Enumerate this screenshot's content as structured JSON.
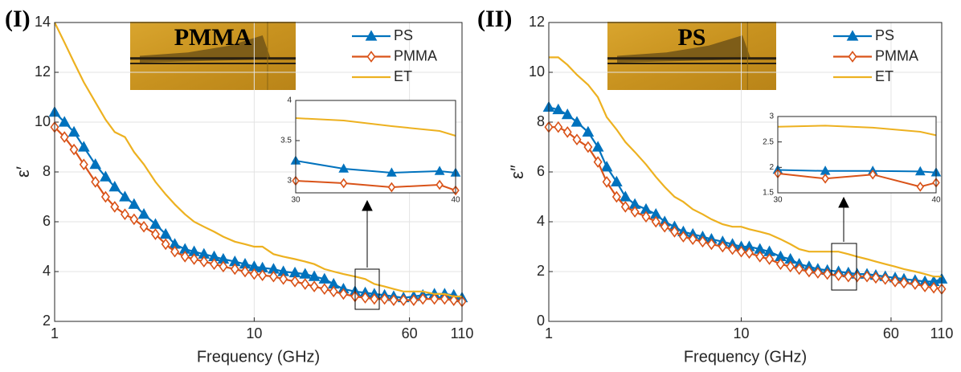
{
  "chart_data": [
    {
      "type": "line",
      "panel_label": "(I)",
      "image_label": "PMMA",
      "xlabel": "Frequency (GHz)",
      "ylabel": "ε′",
      "log_x": true,
      "grid": true,
      "legend": "upper right",
      "xlim": [
        1,
        110
      ],
      "xticks": [
        1,
        10,
        60,
        110
      ],
      "ylim": [
        2,
        14
      ],
      "yticks": [
        2,
        4,
        6,
        8,
        10,
        12,
        14
      ],
      "x": [
        1,
        1.12,
        1.25,
        1.4,
        1.6,
        1.8,
        2,
        2.25,
        2.5,
        2.8,
        3.2,
        3.6,
        4,
        4.5,
        5,
        5.6,
        6.3,
        7,
        8,
        9,
        10,
        11,
        12.5,
        14,
        16,
        18,
        20,
        22.5,
        25,
        28,
        32,
        36,
        40,
        45,
        50,
        56,
        63,
        70,
        80,
        90,
        100,
        110
      ],
      "series": [
        {
          "name": "PS",
          "color": "#0072BD",
          "marker": "triangle",
          "values": [
            10.4,
            10.0,
            9.6,
            9.0,
            8.3,
            7.8,
            7.4,
            7.0,
            6.7,
            6.3,
            5.9,
            5.5,
            5.1,
            4.9,
            4.8,
            4.7,
            4.6,
            4.5,
            4.4,
            4.3,
            4.2,
            4.15,
            4.1,
            4.0,
            3.95,
            3.9,
            3.8,
            3.7,
            3.5,
            3.3,
            3.2,
            3.15,
            3.1,
            3.05,
            3.0,
            2.95,
            3.0,
            3.05,
            3.1,
            3.1,
            3.05,
            2.95
          ]
        },
        {
          "name": "PMMA",
          "color": "#D95319",
          "marker": "diamond",
          "values": [
            9.8,
            9.4,
            8.9,
            8.3,
            7.6,
            7.0,
            6.6,
            6.3,
            6.1,
            5.8,
            5.5,
            5.1,
            4.8,
            4.6,
            4.5,
            4.4,
            4.3,
            4.2,
            4.1,
            4.0,
            3.9,
            3.85,
            3.8,
            3.7,
            3.6,
            3.5,
            3.4,
            3.3,
            3.2,
            3.1,
            3.0,
            2.95,
            2.9,
            2.9,
            2.85,
            2.85,
            2.85,
            2.9,
            2.9,
            2.9,
            2.85,
            2.8
          ]
        },
        {
          "name": "ET",
          "color": "#EDB120",
          "marker": null,
          "values": [
            14.0,
            13.2,
            12.4,
            11.6,
            10.8,
            10.1,
            9.6,
            9.4,
            8.8,
            8.3,
            7.6,
            7.1,
            6.7,
            6.3,
            6.0,
            5.8,
            5.6,
            5.4,
            5.2,
            5.1,
            5.0,
            5.0,
            4.7,
            4.6,
            4.5,
            4.4,
            4.3,
            4.1,
            4.0,
            3.9,
            3.8,
            3.7,
            3.5,
            3.4,
            3.3,
            3.2,
            3.2,
            3.2,
            3.1,
            3.1,
            3.0,
            3.0
          ]
        }
      ]
    },
    {
      "type": "line",
      "grid": false,
      "xlim": [
        30,
        40
      ],
      "xticks": [
        30,
        40
      ],
      "ylim": [
        2.85,
        4
      ],
      "yticks": [
        3,
        3.5,
        4
      ],
      "x": [
        30,
        33,
        36,
        39,
        40
      ],
      "series": [
        {
          "color": "#0072BD",
          "marker": "triangle",
          "values": [
            3.25,
            3.15,
            3.1,
            3.12,
            3.1
          ]
        },
        {
          "color": "#D95319",
          "marker": "diamond",
          "values": [
            3.0,
            2.97,
            2.92,
            2.95,
            2.88
          ]
        },
        {
          "color": "#EDB120",
          "marker": null,
          "values": [
            3.78,
            3.75,
            3.68,
            3.62,
            3.56
          ]
        }
      ]
    },
    {
      "type": "line",
      "panel_label": "(II)",
      "image_label": "PS",
      "xlabel": "Frequency (GHz)",
      "ylabel": "ε″",
      "log_x": true,
      "grid": true,
      "legend": "upper right",
      "xlim": [
        1,
        110
      ],
      "xticks": [
        1,
        10,
        60,
        110
      ],
      "ylim": [
        0,
        12
      ],
      "yticks": [
        0,
        2,
        4,
        6,
        8,
        10,
        12
      ],
      "x": [
        1,
        1.12,
        1.25,
        1.4,
        1.6,
        1.8,
        2,
        2.25,
        2.5,
        2.8,
        3.2,
        3.6,
        4,
        4.5,
        5,
        5.6,
        6.3,
        7,
        8,
        9,
        10,
        11,
        12.5,
        14,
        16,
        18,
        20,
        22.5,
        25,
        28,
        32,
        36,
        40,
        45,
        50,
        56,
        63,
        70,
        80,
        90,
        100,
        110
      ],
      "series": [
        {
          "name": "PS",
          "color": "#0072BD",
          "marker": "triangle",
          "values": [
            8.6,
            8.5,
            8.3,
            8.0,
            7.6,
            7.0,
            6.2,
            5.6,
            5.0,
            4.7,
            4.5,
            4.3,
            4.0,
            3.8,
            3.6,
            3.5,
            3.4,
            3.3,
            3.2,
            3.1,
            3.0,
            3.0,
            2.9,
            2.8,
            2.6,
            2.5,
            2.3,
            2.2,
            2.1,
            2.05,
            2.0,
            1.95,
            1.9,
            1.9,
            1.85,
            1.8,
            1.75,
            1.7,
            1.65,
            1.6,
            1.6,
            1.7
          ]
        },
        {
          "name": "PMMA",
          "color": "#D95319",
          "marker": "diamond",
          "values": [
            7.8,
            7.8,
            7.6,
            7.3,
            7.0,
            6.4,
            5.6,
            5.0,
            4.6,
            4.4,
            4.2,
            4.0,
            3.8,
            3.6,
            3.4,
            3.3,
            3.2,
            3.1,
            3.0,
            2.9,
            2.8,
            2.75,
            2.6,
            2.5,
            2.3,
            2.2,
            2.1,
            2.0,
            1.95,
            1.9,
            1.85,
            1.8,
            1.8,
            1.8,
            1.75,
            1.7,
            1.6,
            1.55,
            1.5,
            1.4,
            1.35,
            1.3
          ]
        },
        {
          "name": "ET",
          "color": "#EDB120",
          "marker": null,
          "values": [
            10.6,
            10.6,
            10.3,
            9.9,
            9.5,
            9.0,
            8.2,
            7.7,
            7.2,
            6.8,
            6.3,
            5.8,
            5.4,
            5.0,
            4.8,
            4.5,
            4.3,
            4.1,
            3.9,
            3.8,
            3.8,
            3.7,
            3.6,
            3.5,
            3.3,
            3.1,
            2.9,
            2.8,
            2.8,
            2.8,
            2.8,
            2.7,
            2.6,
            2.5,
            2.4,
            2.3,
            2.2,
            2.1,
            2.0,
            1.9,
            1.8,
            1.8
          ]
        }
      ]
    },
    {
      "type": "line",
      "grid": false,
      "xlim": [
        30,
        40
      ],
      "xticks": [
        30,
        40
      ],
      "ylim": [
        1.5,
        3
      ],
      "yticks": [
        1.5,
        2,
        2.5,
        3
      ],
      "x": [
        30,
        33,
        36,
        39,
        40
      ],
      "series": [
        {
          "color": "#0072BD",
          "marker": "triangle",
          "values": [
            1.95,
            1.93,
            1.93,
            1.92,
            1.9
          ]
        },
        {
          "color": "#D95319",
          "marker": "diamond",
          "values": [
            1.88,
            1.78,
            1.86,
            1.62,
            1.7
          ]
        },
        {
          "color": "#EDB120",
          "marker": null,
          "values": [
            2.8,
            2.82,
            2.78,
            2.7,
            2.63
          ]
        }
      ]
    }
  ]
}
